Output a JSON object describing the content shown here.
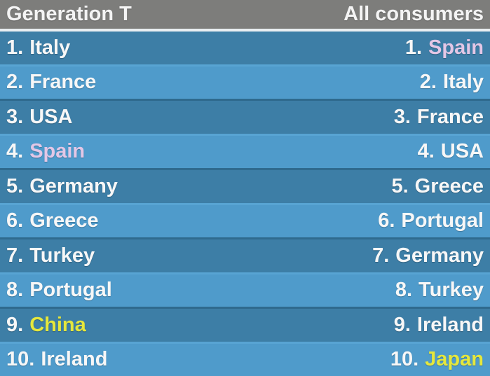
{
  "chart_data": {
    "type": "table",
    "title": "",
    "columns": [
      {
        "label": "Generation T",
        "align": "left"
      },
      {
        "label": "All consumers",
        "align": "right"
      }
    ],
    "rows": [
      {
        "rank": "1.",
        "generation_t": "Italy",
        "generation_t_highlight": "white",
        "all_consumers": "Spain",
        "all_consumers_highlight": "pink"
      },
      {
        "rank": "2.",
        "generation_t": "France",
        "generation_t_highlight": "white",
        "all_consumers": "Italy",
        "all_consumers_highlight": "white"
      },
      {
        "rank": "3.",
        "generation_t": "USA",
        "generation_t_highlight": "white",
        "all_consumers": "France",
        "all_consumers_highlight": "white"
      },
      {
        "rank": "4.",
        "generation_t": "Spain",
        "generation_t_highlight": "pink",
        "all_consumers": "USA",
        "all_consumers_highlight": "white"
      },
      {
        "rank": "5.",
        "generation_t": "Germany",
        "generation_t_highlight": "white",
        "all_consumers": "Greece",
        "all_consumers_highlight": "white"
      },
      {
        "rank": "6.",
        "generation_t": "Greece",
        "generation_t_highlight": "white",
        "all_consumers": "Portugal",
        "all_consumers_highlight": "white"
      },
      {
        "rank": "7.",
        "generation_t": "Turkey",
        "generation_t_highlight": "white",
        "all_consumers": "Germany",
        "all_consumers_highlight": "white"
      },
      {
        "rank": "8.",
        "generation_t": "Portugal",
        "generation_t_highlight": "white",
        "all_consumers": "Turkey",
        "all_consumers_highlight": "white"
      },
      {
        "rank": "9.",
        "generation_t": "China",
        "generation_t_highlight": "yellow",
        "all_consumers": "Ireland",
        "all_consumers_highlight": "white"
      },
      {
        "rank": "10.",
        "generation_t": "Ireland",
        "generation_t_highlight": "white",
        "all_consumers": "Japan",
        "all_consumers_highlight": "yellow"
      }
    ]
  },
  "colors": {
    "header_bg": "#7d7d7b",
    "row_dark": "#3d7ea6",
    "row_light": "#4f9bcb",
    "text_white": "#f7f7f7",
    "text_pink": "#e3c7e6",
    "text_yellow": "#e5e73c"
  }
}
